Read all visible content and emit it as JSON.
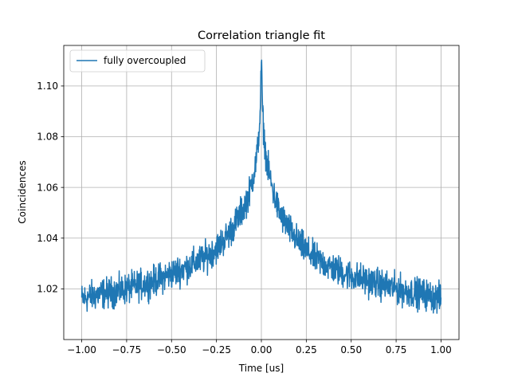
{
  "chart_data": {
    "type": "line",
    "title": "Correlation triangle fit",
    "xlabel": "Time [us]",
    "ylabel": "Coincidences",
    "xlim": [
      -1.1,
      1.1
    ],
    "ylim": [
      1.0,
      1.116
    ],
    "x_ticks": [
      -1.0,
      -0.75,
      -0.5,
      -0.25,
      0.0,
      0.25,
      0.5,
      0.75,
      1.0
    ],
    "x_tick_labels": [
      "−1.00",
      "−0.75",
      "−0.50",
      "−0.25",
      "0.00",
      "0.25",
      "0.50",
      "0.75",
      "1.00"
    ],
    "y_ticks": [
      1.02,
      1.04,
      1.06,
      1.08,
      1.1
    ],
    "y_tick_labels": [
      "1.02",
      "1.04",
      "1.06",
      "1.08",
      "1.10"
    ],
    "grid": true,
    "legend_position": "top-left",
    "series": [
      {
        "name": "fully overcoupled",
        "color": "#1f77b4",
        "x": [
          -1.0,
          -0.9,
          -0.8,
          -0.7,
          -0.6,
          -0.5,
          -0.4,
          -0.3,
          -0.25,
          -0.2,
          -0.15,
          -0.1,
          -0.07,
          -0.05,
          -0.03,
          -0.02,
          -0.01,
          -0.005,
          0.0,
          0.005,
          0.01,
          0.02,
          0.03,
          0.05,
          0.07,
          0.1,
          0.15,
          0.2,
          0.25,
          0.3,
          0.4,
          0.5,
          0.6,
          0.7,
          0.8,
          0.9,
          1.0
        ],
        "y": [
          1.016,
          1.018,
          1.019,
          1.021,
          1.023,
          1.026,
          1.029,
          1.033,
          1.036,
          1.04,
          1.045,
          1.052,
          1.057,
          1.063,
          1.07,
          1.076,
          1.085,
          1.095,
          1.11,
          1.095,
          1.085,
          1.076,
          1.07,
          1.063,
          1.057,
          1.05,
          1.044,
          1.039,
          1.035,
          1.032,
          1.028,
          1.025,
          1.023,
          1.021,
          1.019,
          1.018,
          1.016
        ]
      }
    ]
  }
}
